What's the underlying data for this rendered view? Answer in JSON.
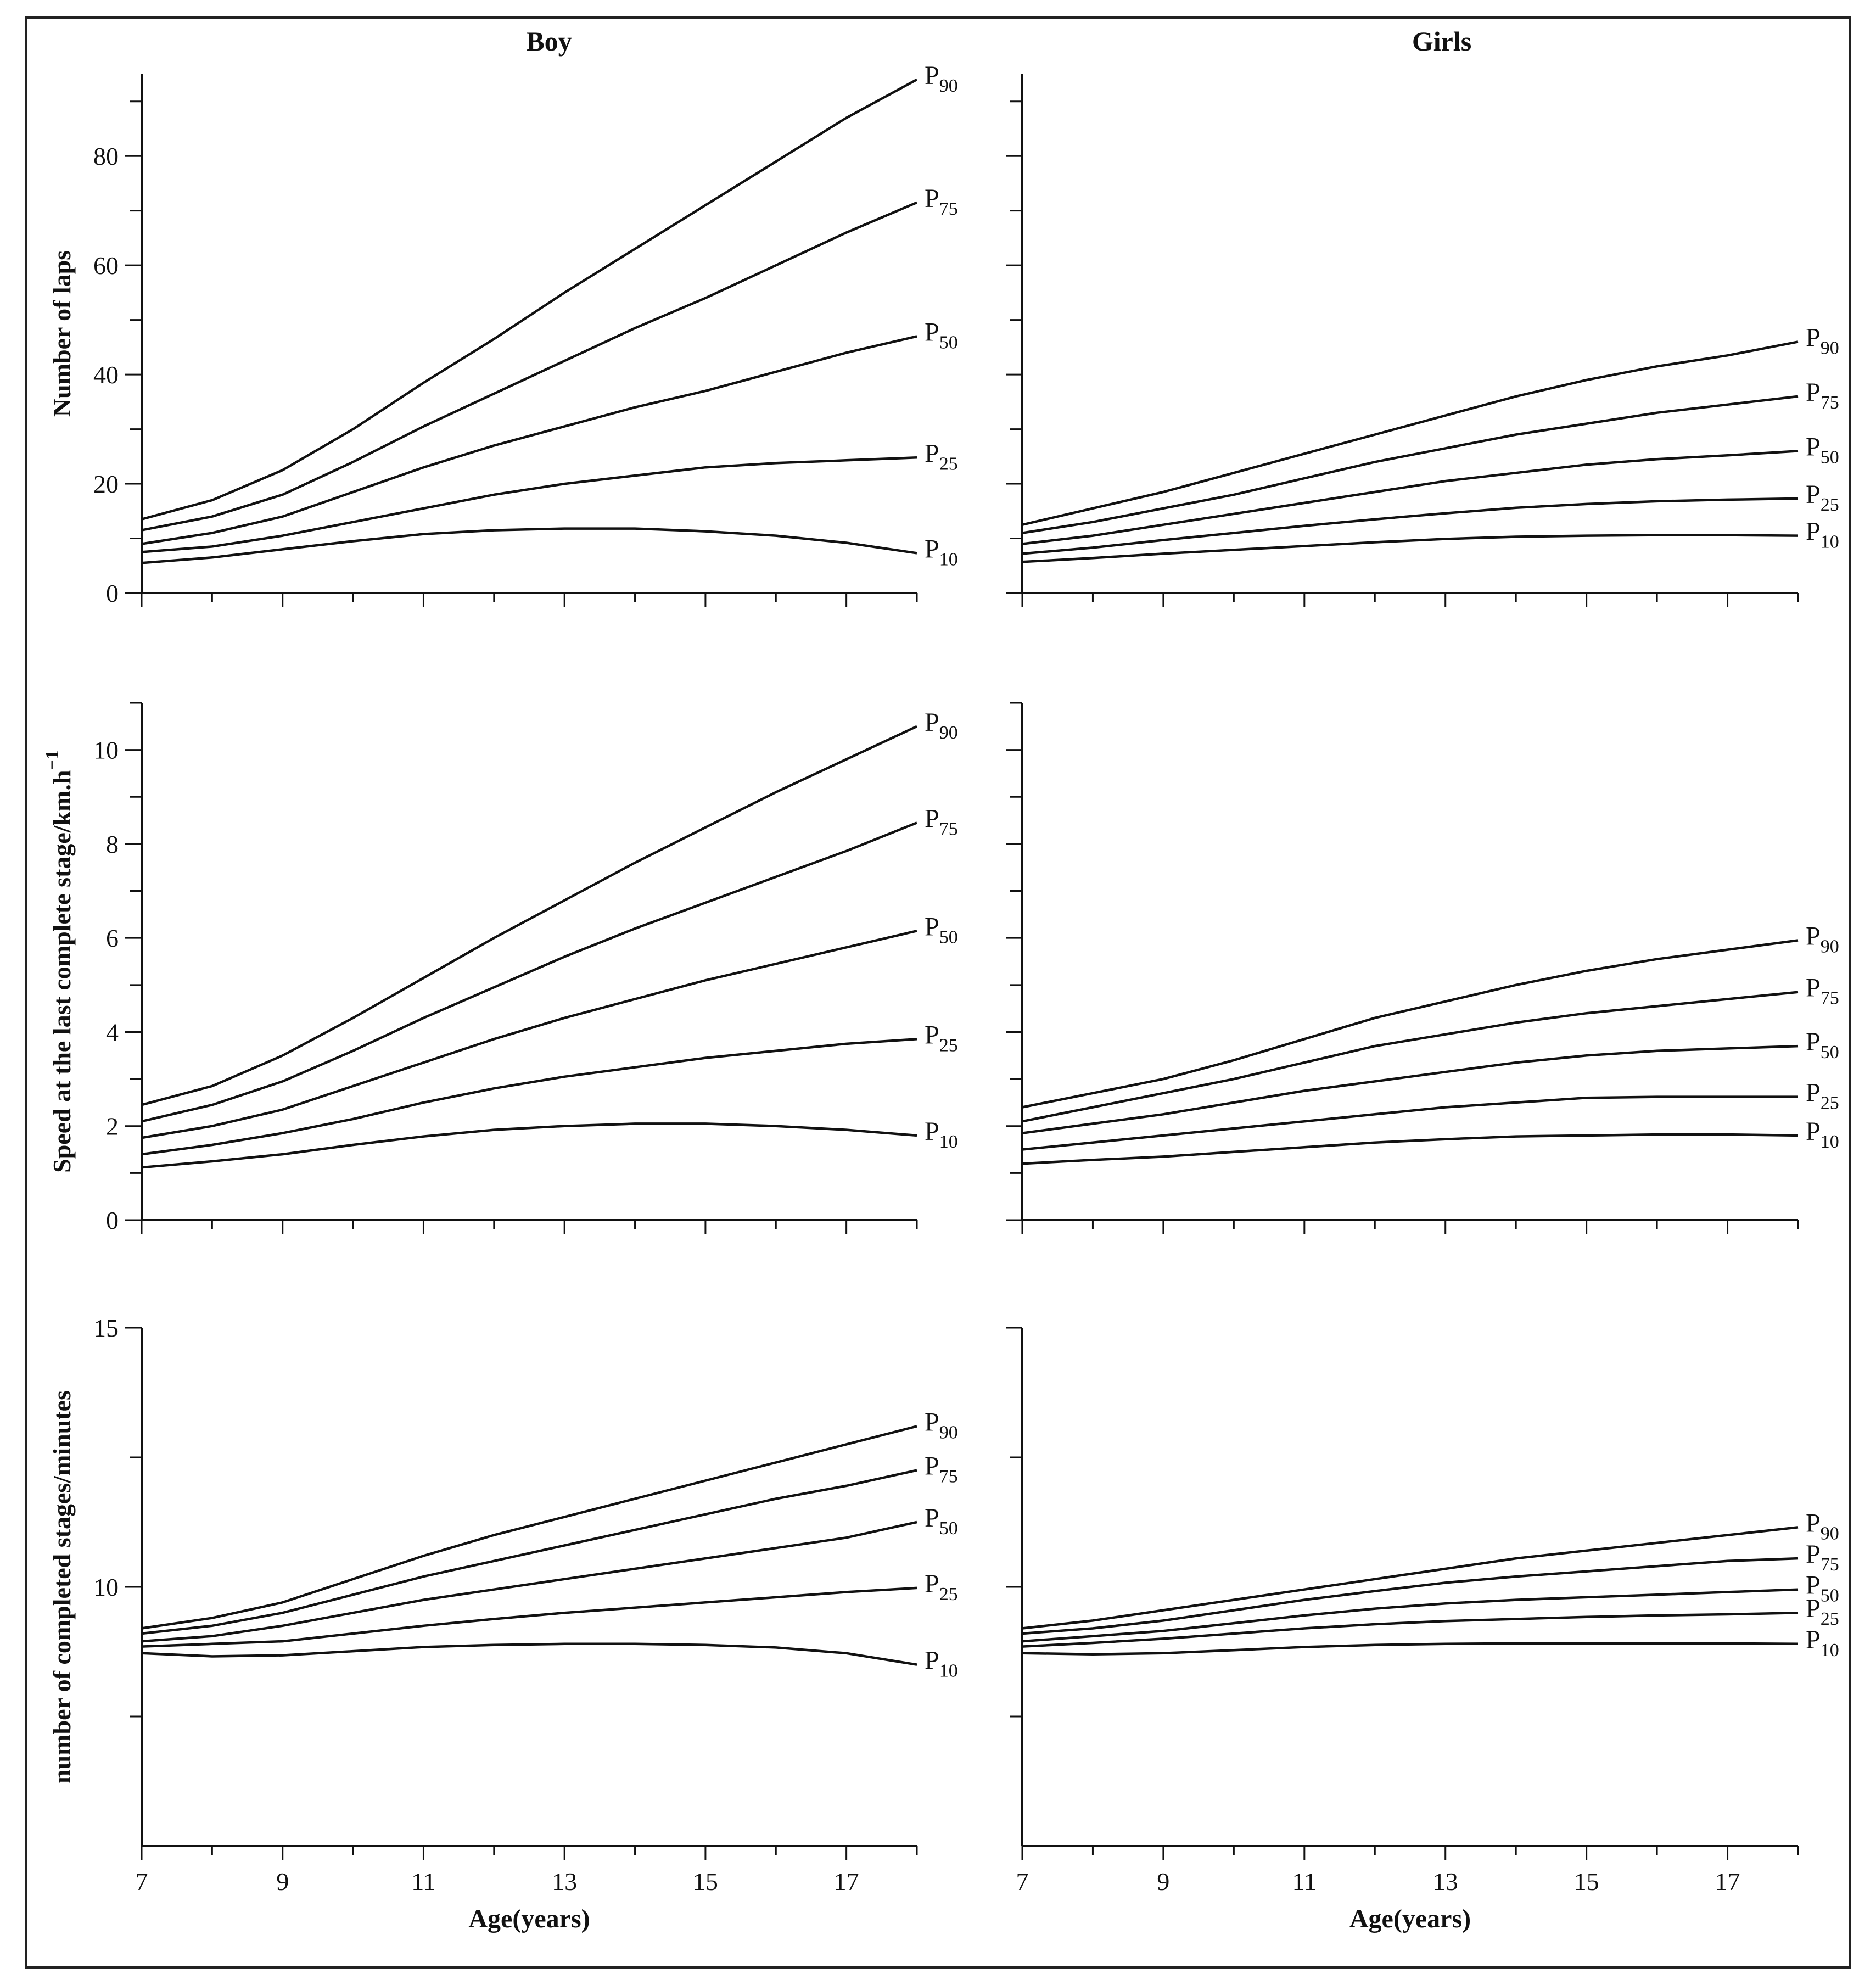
{
  "colors": {
    "line": "#111111",
    "background": "#ffffff"
  },
  "columns": [
    "Boy",
    "Girls"
  ],
  "chart_data": [
    {
      "type": "line",
      "row": 0,
      "col": 0,
      "column_title": "Boy",
      "ylabel": "Number of laps",
      "xlabel": "",
      "xlim": [
        7,
        18
      ],
      "ylim": [
        0,
        95
      ],
      "yticks_major": [
        0,
        20,
        40,
        60,
        80
      ],
      "yminor_step": 10,
      "xticks_major": [],
      "x": [
        7,
        8,
        9,
        10,
        11,
        12,
        13,
        14,
        15,
        16,
        17,
        18
      ],
      "series": [
        {
          "name": "P90",
          "label_main": "P",
          "label_sub": "90",
          "values": [
            13.5,
            17,
            22.5,
            30,
            38.5,
            46.5,
            55,
            63,
            71,
            79,
            87,
            94
          ]
        },
        {
          "name": "P75",
          "label_main": "P",
          "label_sub": "75",
          "values": [
            11.5,
            14,
            18,
            24,
            30.5,
            36.5,
            42.5,
            48.5,
            54,
            60,
            66,
            71.5
          ]
        },
        {
          "name": "P50",
          "label_main": "P",
          "label_sub": "50",
          "values": [
            9,
            11,
            14,
            18.5,
            23,
            27,
            30.5,
            34,
            37,
            40.5,
            44,
            47
          ]
        },
        {
          "name": "P25",
          "label_main": "P",
          "label_sub": "25",
          "values": [
            7.5,
            8.5,
            10.5,
            13,
            15.5,
            18,
            20,
            21.5,
            23,
            23.8,
            24.3,
            24.8
          ]
        },
        {
          "name": "P10",
          "label_main": "P",
          "label_sub": "10",
          "values": [
            5.5,
            6.5,
            8,
            9.5,
            10.8,
            11.5,
            11.8,
            11.8,
            11.3,
            10.5,
            9.2,
            7.3
          ]
        }
      ]
    },
    {
      "type": "line",
      "row": 0,
      "col": 1,
      "column_title": "Girls",
      "ylabel": "",
      "xlabel": "",
      "xlim": [
        7,
        18
      ],
      "ylim": [
        0,
        95
      ],
      "yticks_major": [
        0,
        20,
        40,
        60,
        80
      ],
      "yminor_step": 10,
      "xticks_major": [],
      "x": [
        7,
        8,
        9,
        10,
        11,
        12,
        13,
        14,
        15,
        16,
        17,
        18
      ],
      "series": [
        {
          "name": "P90",
          "label_main": "P",
          "label_sub": "90",
          "values": [
            12.5,
            15.5,
            18.5,
            22,
            25.5,
            29,
            32.5,
            36,
            39,
            41.5,
            43.5,
            46
          ]
        },
        {
          "name": "P75",
          "label_main": "P",
          "label_sub": "75",
          "values": [
            11,
            13,
            15.5,
            18,
            21,
            24,
            26.5,
            29,
            31,
            33,
            34.5,
            36
          ]
        },
        {
          "name": "P50",
          "label_main": "P",
          "label_sub": "50",
          "values": [
            9,
            10.5,
            12.5,
            14.5,
            16.5,
            18.5,
            20.5,
            22,
            23.5,
            24.5,
            25.2,
            26
          ]
        },
        {
          "name": "P25",
          "label_main": "P",
          "label_sub": "25",
          "values": [
            7.2,
            8.3,
            9.7,
            11,
            12.3,
            13.5,
            14.6,
            15.6,
            16.3,
            16.8,
            17.1,
            17.3
          ]
        },
        {
          "name": "P10",
          "label_main": "P",
          "label_sub": "10",
          "values": [
            5.7,
            6.4,
            7.2,
            7.9,
            8.6,
            9.3,
            9.9,
            10.3,
            10.5,
            10.6,
            10.6,
            10.5
          ]
        }
      ]
    },
    {
      "type": "line",
      "row": 1,
      "col": 0,
      "column_title": "",
      "ylabel": "Speed at the last complete stage/km.h",
      "ylabel_sup": "−1",
      "xlabel": "",
      "xlim": [
        7,
        18
      ],
      "ylim": [
        0,
        11
      ],
      "yticks_major": [
        0,
        2,
        4,
        6,
        8,
        10
      ],
      "yminor_step": 1,
      "xticks_major": [],
      "x": [
        7,
        8,
        9,
        10,
        11,
        12,
        13,
        14,
        15,
        16,
        17,
        18
      ],
      "series": [
        {
          "name": "P90",
          "label_main": "P",
          "label_sub": "90",
          "values": [
            2.45,
            2.85,
            3.5,
            4.3,
            5.15,
            6,
            6.8,
            7.6,
            8.35,
            9.1,
            9.8,
            10.5
          ]
        },
        {
          "name": "P75",
          "label_main": "P",
          "label_sub": "75",
          "values": [
            2.1,
            2.45,
            2.95,
            3.6,
            4.3,
            4.95,
            5.6,
            6.2,
            6.75,
            7.3,
            7.85,
            8.45
          ]
        },
        {
          "name": "P50",
          "label_main": "P",
          "label_sub": "50",
          "values": [
            1.75,
            2,
            2.35,
            2.85,
            3.35,
            3.85,
            4.3,
            4.7,
            5.1,
            5.45,
            5.8,
            6.15
          ]
        },
        {
          "name": "P25",
          "label_main": "P",
          "label_sub": "25",
          "values": [
            1.4,
            1.6,
            1.85,
            2.15,
            2.5,
            2.8,
            3.05,
            3.25,
            3.45,
            3.6,
            3.75,
            3.85
          ]
        },
        {
          "name": "P10",
          "label_main": "P",
          "label_sub": "10",
          "values": [
            1.12,
            1.25,
            1.4,
            1.6,
            1.78,
            1.92,
            2,
            2.05,
            2.05,
            2,
            1.92,
            1.8
          ]
        }
      ]
    },
    {
      "type": "line",
      "row": 1,
      "col": 1,
      "column_title": "",
      "ylabel": "",
      "xlabel": "",
      "xlim": [
        7,
        18
      ],
      "ylim": [
        0,
        11
      ],
      "yticks_major": [
        0,
        2,
        4,
        6,
        8,
        10
      ],
      "yminor_step": 1,
      "xticks_major": [],
      "x": [
        7,
        8,
        9,
        10,
        11,
        12,
        13,
        14,
        15,
        16,
        17,
        18
      ],
      "series": [
        {
          "name": "P90",
          "label_main": "P",
          "label_sub": "90",
          "values": [
            2.4,
            2.7,
            3,
            3.4,
            3.85,
            4.3,
            4.65,
            5,
            5.3,
            5.55,
            5.75,
            5.95
          ]
        },
        {
          "name": "P75",
          "label_main": "P",
          "label_sub": "75",
          "values": [
            2.1,
            2.4,
            2.7,
            3,
            3.35,
            3.7,
            3.95,
            4.2,
            4.4,
            4.55,
            4.7,
            4.85
          ]
        },
        {
          "name": "P50",
          "label_main": "P",
          "label_sub": "50",
          "values": [
            1.85,
            2.05,
            2.25,
            2.5,
            2.75,
            2.95,
            3.15,
            3.35,
            3.5,
            3.6,
            3.65,
            3.7
          ]
        },
        {
          "name": "P25",
          "label_main": "P",
          "label_sub": "25",
          "values": [
            1.5,
            1.65,
            1.8,
            1.95,
            2.1,
            2.25,
            2.4,
            2.5,
            2.6,
            2.62,
            2.62,
            2.62
          ]
        },
        {
          "name": "P10",
          "label_main": "P",
          "label_sub": "10",
          "values": [
            1.2,
            1.28,
            1.35,
            1.45,
            1.55,
            1.65,
            1.72,
            1.78,
            1.8,
            1.82,
            1.82,
            1.8
          ]
        }
      ]
    },
    {
      "type": "line",
      "row": 2,
      "col": 0,
      "column_title": "",
      "ylabel": "number of completed stages/minutes",
      "xlabel": "Age(years)",
      "xlim": [
        7,
        18
      ],
      "ylim": [
        5,
        15
      ],
      "yticks_major": [
        10,
        15
      ],
      "yminor_step": 2.5,
      "ytick_labels_shown": [
        10,
        15
      ],
      "xticks_major": [
        7,
        9,
        11,
        13,
        15,
        17
      ],
      "x": [
        7,
        8,
        9,
        10,
        11,
        12,
        13,
        14,
        15,
        16,
        17,
        18
      ],
      "series": [
        {
          "name": "P90",
          "label_main": "P",
          "label_sub": "90",
          "values": [
            9.2,
            9.4,
            9.7,
            10.15,
            10.6,
            11,
            11.35,
            11.7,
            12.05,
            12.4,
            12.75,
            13.1
          ]
        },
        {
          "name": "P75",
          "label_main": "P",
          "label_sub": "75",
          "values": [
            9.1,
            9.25,
            9.5,
            9.85,
            10.2,
            10.5,
            10.8,
            11.1,
            11.4,
            11.7,
            11.95,
            12.25
          ]
        },
        {
          "name": "P50",
          "label_main": "P",
          "label_sub": "50",
          "values": [
            8.95,
            9.05,
            9.25,
            9.5,
            9.75,
            9.95,
            10.15,
            10.35,
            10.55,
            10.75,
            10.95,
            11.25
          ]
        },
        {
          "name": "P25",
          "label_main": "P",
          "label_sub": "25",
          "values": [
            8.85,
            8.9,
            8.95,
            9.1,
            9.25,
            9.38,
            9.5,
            9.6,
            9.7,
            9.8,
            9.9,
            9.98
          ]
        },
        {
          "name": "P10",
          "label_main": "P",
          "label_sub": "10",
          "values": [
            8.72,
            8.66,
            8.68,
            8.76,
            8.84,
            8.88,
            8.9,
            8.9,
            8.88,
            8.83,
            8.72,
            8.5
          ]
        }
      ]
    },
    {
      "type": "line",
      "row": 2,
      "col": 1,
      "column_title": "",
      "ylabel": "",
      "xlabel": "Age(years)",
      "xlim": [
        7,
        18
      ],
      "ylim": [
        5,
        15
      ],
      "yticks_major": [
        10,
        15
      ],
      "yminor_step": 2.5,
      "ytick_labels_shown": [],
      "xticks_major": [
        7,
        9,
        11,
        13,
        15,
        17
      ],
      "x": [
        7,
        8,
        9,
        10,
        11,
        12,
        13,
        14,
        15,
        16,
        17,
        18
      ],
      "series": [
        {
          "name": "P90",
          "label_main": "P",
          "label_sub": "90",
          "values": [
            9.2,
            9.35,
            9.55,
            9.75,
            9.95,
            10.15,
            10.35,
            10.55,
            10.7,
            10.85,
            11,
            11.15
          ]
        },
        {
          "name": "P75",
          "label_main": "P",
          "label_sub": "75",
          "values": [
            9.1,
            9.2,
            9.35,
            9.55,
            9.75,
            9.92,
            10.08,
            10.2,
            10.3,
            10.4,
            10.5,
            10.55
          ]
        },
        {
          "name": "P50",
          "label_main": "P",
          "label_sub": "50",
          "values": [
            8.95,
            9.05,
            9.15,
            9.3,
            9.45,
            9.58,
            9.68,
            9.75,
            9.8,
            9.85,
            9.9,
            9.95
          ]
        },
        {
          "name": "P25",
          "label_main": "P",
          "label_sub": "25",
          "values": [
            8.85,
            8.92,
            9,
            9.1,
            9.2,
            9.28,
            9.34,
            9.38,
            9.42,
            9.45,
            9.47,
            9.5
          ]
        },
        {
          "name": "P10",
          "label_main": "P",
          "label_sub": "10",
          "values": [
            8.72,
            8.7,
            8.72,
            8.78,
            8.84,
            8.88,
            8.9,
            8.91,
            8.91,
            8.91,
            8.91,
            8.9
          ]
        }
      ]
    }
  ]
}
